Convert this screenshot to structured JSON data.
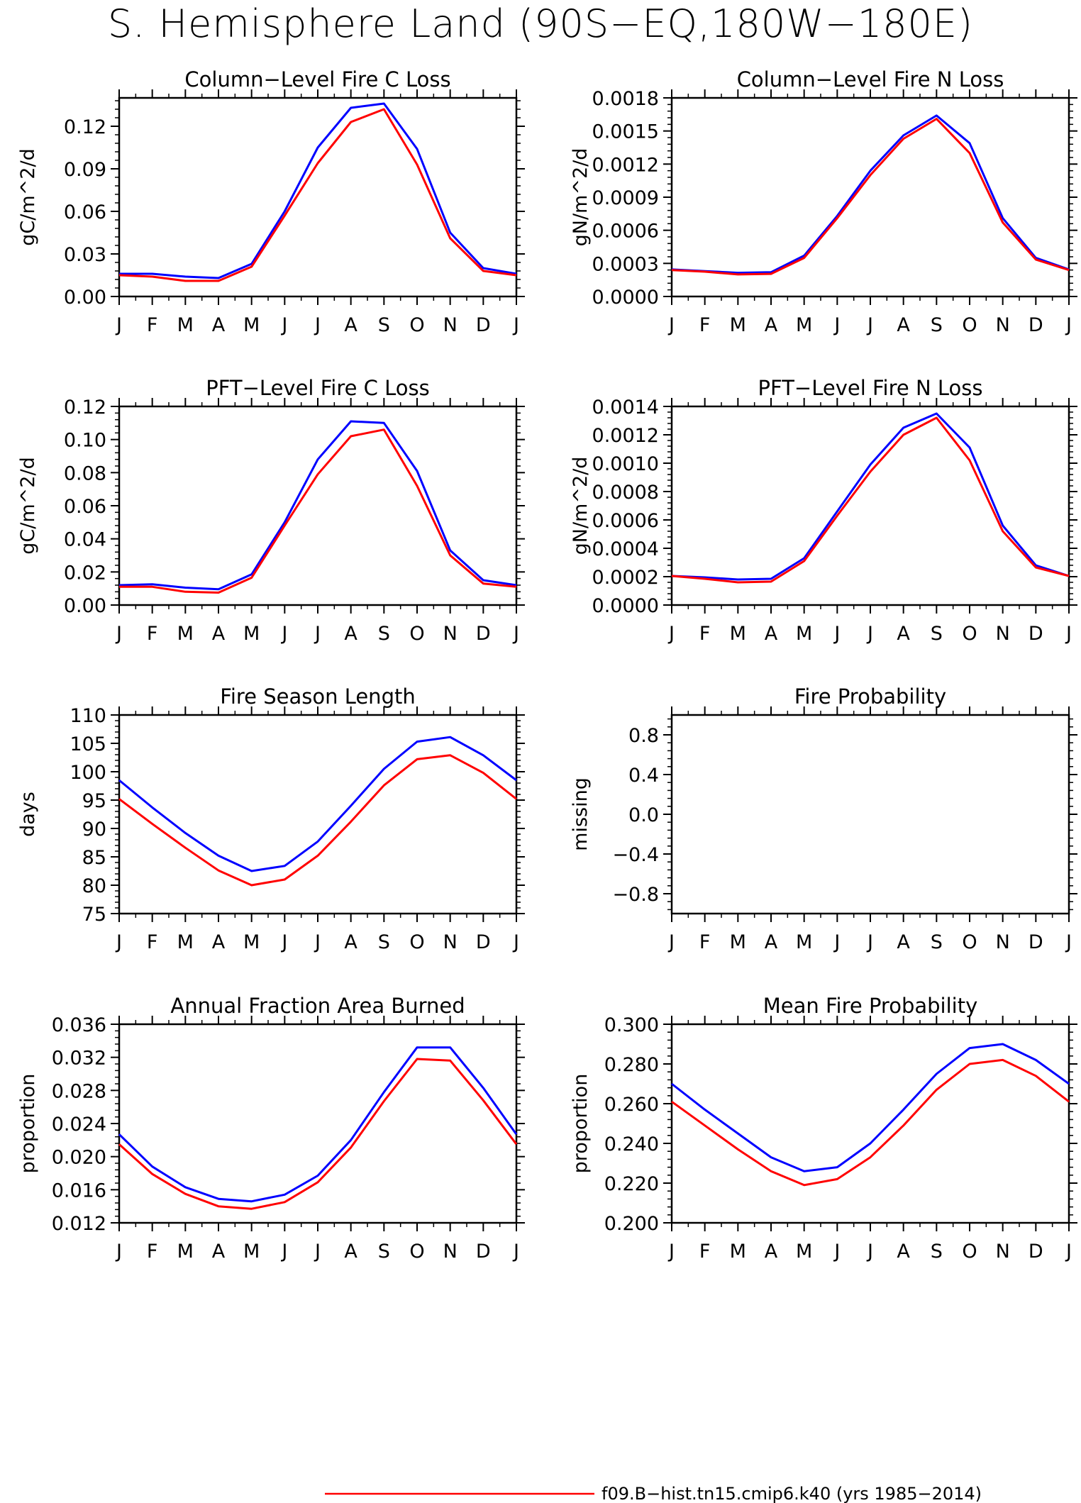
{
  "figure": {
    "title": "S. Hemisphere Land (90S−EQ,180W−180E)",
    "legend": [
      {
        "label": "f09.B−hist.tn15.cmip6.k40 (yrs 1985−2014)",
        "color": "#ff0000"
      }
    ]
  },
  "chart_data": [
    {
      "type": "line",
      "title": "Column−Level Fire C Loss",
      "ylabel": "gC/m^2/d",
      "xlabel": "",
      "categories": [
        "J",
        "F",
        "M",
        "A",
        "M",
        "J",
        "J",
        "A",
        "S",
        "O",
        "N",
        "D",
        "J"
      ],
      "ylim": [
        0.0,
        0.14
      ],
      "yticks": [
        0.0,
        0.03,
        0.06,
        0.09,
        0.12
      ],
      "ytick_labels": [
        "0.00",
        "0.03",
        "0.06",
        "0.09",
        "0.12"
      ],
      "grid": false,
      "series": [
        {
          "color": "#0000ff",
          "values": [
            0.016,
            0.016,
            0.014,
            0.013,
            0.023,
            0.06,
            0.105,
            0.133,
            0.136,
            0.104,
            0.045,
            0.02,
            0.016
          ]
        },
        {
          "color": "#ff0000",
          "values": [
            0.015,
            0.014,
            0.011,
            0.011,
            0.021,
            0.057,
            0.094,
            0.123,
            0.132,
            0.093,
            0.041,
            0.018,
            0.015
          ]
        }
      ]
    },
    {
      "type": "line",
      "title": "Column−Level Fire N Loss",
      "ylabel": "gN/m^2/d",
      "xlabel": "",
      "categories": [
        "J",
        "F",
        "M",
        "A",
        "M",
        "J",
        "J",
        "A",
        "S",
        "O",
        "N",
        "D",
        "J"
      ],
      "ylim": [
        0.0,
        0.0018
      ],
      "yticks": [
        0.0,
        0.0003,
        0.0006,
        0.0009,
        0.0012,
        0.0015,
        0.0018
      ],
      "ytick_labels": [
        "0.0000",
        "0.0003",
        "0.0006",
        "0.0009",
        "0.0012",
        "0.0015",
        "0.0018"
      ],
      "grid": false,
      "series": [
        {
          "color": "#0000ff",
          "values": [
            0.000245,
            0.00023,
            0.000215,
            0.00022,
            0.00037,
            0.00073,
            0.00114,
            0.00146,
            0.00164,
            0.00139,
            0.00071,
            0.00035,
            0.000245
          ]
        },
        {
          "color": "#ff0000",
          "values": [
            0.00024,
            0.000225,
            0.0002,
            0.000205,
            0.00035,
            0.00071,
            0.0011,
            0.00143,
            0.00161,
            0.0013,
            0.00067,
            0.000335,
            0.00024
          ]
        }
      ]
    },
    {
      "type": "line",
      "title": "PFT−Level Fire C Loss",
      "ylabel": "gC/m^2/d",
      "xlabel": "",
      "categories": [
        "J",
        "F",
        "M",
        "A",
        "M",
        "J",
        "J",
        "A",
        "S",
        "O",
        "N",
        "D",
        "J"
      ],
      "ylim": [
        0.0,
        0.12
      ],
      "yticks": [
        0.0,
        0.02,
        0.04,
        0.06,
        0.08,
        0.1,
        0.12
      ],
      "ytick_labels": [
        "0.00",
        "0.02",
        "0.04",
        "0.06",
        "0.08",
        "0.10",
        "0.12"
      ],
      "grid": false,
      "series": [
        {
          "color": "#0000ff",
          "values": [
            0.012,
            0.0125,
            0.0105,
            0.0095,
            0.0185,
            0.05,
            0.088,
            0.111,
            0.11,
            0.081,
            0.033,
            0.015,
            0.012
          ]
        },
        {
          "color": "#ff0000",
          "values": [
            0.011,
            0.011,
            0.008,
            0.0075,
            0.0165,
            0.048,
            0.079,
            0.102,
            0.106,
            0.072,
            0.03,
            0.013,
            0.011
          ]
        }
      ]
    },
    {
      "type": "line",
      "title": "PFT−Level Fire N Loss",
      "ylabel": "gN/m^2/d",
      "xlabel": "",
      "categories": [
        "J",
        "F",
        "M",
        "A",
        "M",
        "J",
        "J",
        "A",
        "S",
        "O",
        "N",
        "D",
        "J"
      ],
      "ylim": [
        0.0,
        0.0014
      ],
      "yticks": [
        0.0,
        0.0002,
        0.0004,
        0.0006,
        0.0008,
        0.001,
        0.0012,
        0.0014
      ],
      "ytick_labels": [
        "0.0000",
        "0.0002",
        "0.0004",
        "0.0006",
        "0.0008",
        "0.0010",
        "0.0012",
        "0.0014"
      ],
      "grid": false,
      "series": [
        {
          "color": "#0000ff",
          "values": [
            0.000205,
            0.000195,
            0.00018,
            0.000185,
            0.00033,
            0.00066,
            0.00099,
            0.00125,
            0.00135,
            0.00111,
            0.00056,
            0.00028,
            0.000205
          ]
        },
        {
          "color": "#ff0000",
          "values": [
            0.000205,
            0.000185,
            0.00016,
            0.000165,
            0.00031,
            0.00063,
            0.00094,
            0.0012,
            0.00132,
            0.00102,
            0.00052,
            0.000265,
            0.000205
          ]
        }
      ]
    },
    {
      "type": "line",
      "title": "Fire Season Length",
      "ylabel": "days",
      "xlabel": "",
      "categories": [
        "J",
        "F",
        "M",
        "A",
        "M",
        "J",
        "J",
        "A",
        "S",
        "O",
        "N",
        "D",
        "J"
      ],
      "ylim": [
        75,
        110
      ],
      "yticks": [
        75,
        80,
        85,
        90,
        95,
        100,
        105,
        110
      ],
      "ytick_labels": [
        "75",
        "80",
        "85",
        "90",
        "95",
        "100",
        "105",
        "110"
      ],
      "grid": false,
      "series": [
        {
          "color": "#0000ff",
          "values": [
            98.5,
            93.7,
            89.2,
            85.2,
            82.5,
            83.4,
            87.7,
            94.0,
            100.5,
            105.3,
            106.1,
            102.9,
            98.5
          ]
        },
        {
          "color": "#ff0000",
          "values": [
            95.2,
            90.8,
            86.6,
            82.6,
            80.0,
            81.0,
            85.2,
            91.2,
            97.6,
            102.2,
            102.9,
            99.8,
            95.2
          ]
        }
      ]
    },
    {
      "type": "line",
      "title": "Fire Probability",
      "ylabel": "missing",
      "xlabel": "",
      "categories": [
        "J",
        "F",
        "M",
        "A",
        "M",
        "J",
        "J",
        "A",
        "S",
        "O",
        "N",
        "D",
        "J"
      ],
      "ylim": [
        -1.0,
        1.0
      ],
      "yticks": [
        -0.8,
        -0.4,
        0.0,
        0.4,
        0.8
      ],
      "ytick_labels": [
        "−0.8",
        "−0.4",
        "0.0",
        "0.4",
        "0.8"
      ],
      "grid": false,
      "series": []
    },
    {
      "type": "line",
      "title": "Annual Fraction Area Burned",
      "ylabel": "proportion",
      "xlabel": "",
      "categories": [
        "J",
        "F",
        "M",
        "A",
        "M",
        "J",
        "J",
        "A",
        "S",
        "O",
        "N",
        "D",
        "J"
      ],
      "ylim": [
        0.012,
        0.036
      ],
      "yticks": [
        0.012,
        0.016,
        0.02,
        0.024,
        0.028,
        0.032,
        0.036
      ],
      "ytick_labels": [
        "0.012",
        "0.016",
        "0.020",
        "0.024",
        "0.028",
        "0.032",
        "0.036"
      ],
      "grid": false,
      "series": [
        {
          "color": "#0000ff",
          "values": [
            0.0227,
            0.0188,
            0.0163,
            0.0149,
            0.0146,
            0.0154,
            0.0177,
            0.022,
            0.0278,
            0.0332,
            0.0332,
            0.0283,
            0.0227
          ]
        },
        {
          "color": "#ff0000",
          "values": [
            0.0215,
            0.0179,
            0.0155,
            0.014,
            0.0137,
            0.0145,
            0.0169,
            0.0211,
            0.0267,
            0.0318,
            0.0316,
            0.0268,
            0.0215
          ]
        }
      ]
    },
    {
      "type": "line",
      "title": "Mean Fire Probability",
      "ylabel": "proportion",
      "xlabel": "",
      "categories": [
        "J",
        "F",
        "M",
        "A",
        "M",
        "J",
        "J",
        "A",
        "S",
        "O",
        "N",
        "D",
        "J"
      ],
      "ylim": [
        0.2,
        0.3
      ],
      "yticks": [
        0.2,
        0.22,
        0.24,
        0.26,
        0.28,
        0.3
      ],
      "ytick_labels": [
        "0.200",
        "0.220",
        "0.240",
        "0.260",
        "0.280",
        "0.300"
      ],
      "grid": false,
      "series": [
        {
          "color": "#0000ff",
          "values": [
            0.27,
            0.257,
            0.245,
            0.233,
            0.226,
            0.228,
            0.24,
            0.257,
            0.275,
            0.288,
            0.29,
            0.282,
            0.27
          ]
        },
        {
          "color": "#ff0000",
          "values": [
            0.261,
            0.249,
            0.237,
            0.226,
            0.219,
            0.222,
            0.233,
            0.249,
            0.267,
            0.28,
            0.282,
            0.274,
            0.261
          ]
        }
      ]
    }
  ]
}
